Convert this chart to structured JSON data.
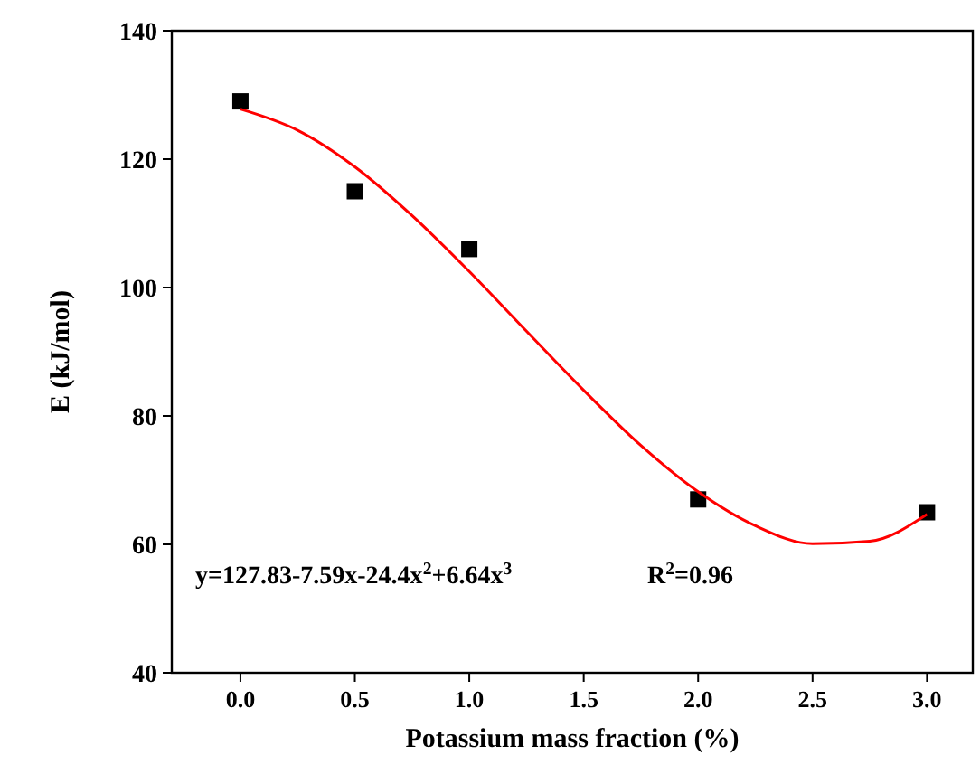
{
  "chart_data": {
    "type": "scatter",
    "xlabel": "Potassium mass fraction (%)",
    "ylabel": "E (kJ/mol)",
    "xlim": [
      -0.3,
      3.2
    ],
    "xticks": [
      {
        "value": 0,
        "label": "0.0"
      },
      {
        "value": 0.5,
        "label": "0.5"
      },
      {
        "value": 1,
        "label": "1.0"
      },
      {
        "value": 1.5,
        "label": "1.5"
      },
      {
        "value": 2,
        "label": "2.0"
      },
      {
        "value": 2.5,
        "label": "2.5"
      },
      {
        "value": 3,
        "label": "3.0"
      }
    ],
    "ylim": [
      40,
      140
    ],
    "yticks": [
      40,
      60,
      80,
      100,
      120,
      140
    ],
    "grid": false,
    "series": [
      {
        "color": "#000000",
        "marker": "square",
        "x": [
          0,
          0.5,
          1,
          2,
          3
        ],
        "values": [
          129,
          115,
          106,
          67,
          65
        ]
      },
      {
        "type": "line",
        "color": "#ff0000",
        "marker": "none",
        "line_style": "solid",
        "x": [
          0,
          0.25,
          0.5,
          0.75,
          1,
          1.25,
          1.5,
          1.75,
          2,
          2.25,
          2.5,
          2.75,
          3
        ],
        "values": [
          127.8,
          124.5,
          118.8,
          111.2,
          102.5,
          93.2,
          84,
          75.4,
          68.2,
          62.9,
          60.1,
          60.5,
          64.7
        ]
      }
    ],
    "annotations": [
      "y=127.83-7.59x-24.4x$^{2}$+6.64x$^{3}$",
      "R$^{2}$=0.96"
    ]
  }
}
